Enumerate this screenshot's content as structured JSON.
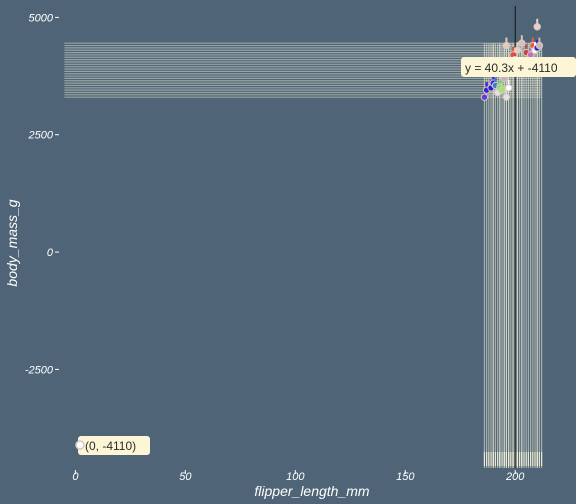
{
  "chart_data": {
    "type": "scatter",
    "title": "",
    "xlabel": "flipper_length_mm",
    "ylabel": "body_mass_g",
    "xlim": [
      -7,
      224
    ],
    "ylim": [
      -4600,
      5200
    ],
    "x_ticks": [
      {
        "value": 0,
        "label": "0"
      },
      {
        "value": 50,
        "label": "50"
      },
      {
        "value": 100,
        "label": "100"
      },
      {
        "value": 150,
        "label": "150"
      },
      {
        "value": 200,
        "label": "200"
      }
    ],
    "y_ticks": [
      {
        "value": 5000,
        "label": "5000"
      },
      {
        "value": 2500,
        "label": "2500"
      },
      {
        "value": 0,
        "label": "0"
      },
      {
        "value": -2500,
        "label": "-2500"
      }
    ],
    "grid": false,
    "legend": "none",
    "colors": {
      "background": "#4f6577",
      "rug": "#f2efd6",
      "callout_bg": "#fdf6d6",
      "crosshair": "#111111",
      "point_outline": "#d9c9c3"
    },
    "points": [
      {
        "x": 186,
        "y": 3300,
        "color": "#5b3fd6"
      },
      {
        "x": 187,
        "y": 3450,
        "color": "#3a1fcf"
      },
      {
        "x": 189,
        "y": 3500,
        "color": "#2d1bd0"
      },
      {
        "x": 190,
        "y": 3600,
        "color": "#4422d8"
      },
      {
        "x": 191,
        "y": 3550,
        "color": "#3a7fd0"
      },
      {
        "x": 192,
        "y": 3400,
        "color": "#e8e0dc"
      },
      {
        "x": 193,
        "y": 3500,
        "color": "#7be27a"
      },
      {
        "x": 194,
        "y": 3450,
        "color": "#9be864"
      },
      {
        "x": 195,
        "y": 3700,
        "color": "#c8b0b0"
      },
      {
        "x": 196,
        "y": 3300,
        "color": "#e8e0dc"
      },
      {
        "x": 197,
        "y": 3500,
        "color": "#ffffff"
      },
      {
        "x": 196,
        "y": 3900,
        "color": "#c8b0b0"
      },
      {
        "x": 196,
        "y": 4400,
        "color": "#e8c8b8"
      },
      {
        "x": 199,
        "y": 4200,
        "color": "#e05040"
      },
      {
        "x": 200,
        "y": 4100,
        "color": "#d04040"
      },
      {
        "x": 201,
        "y": 4300,
        "color": "#e0d0c8"
      },
      {
        "x": 203,
        "y": 4450,
        "color": "#d8c0b8"
      },
      {
        "x": 205,
        "y": 4250,
        "color": "#c04848"
      },
      {
        "x": 207,
        "y": 4200,
        "color": "#c070c0"
      },
      {
        "x": 208,
        "y": 4400,
        "color": "#e06040"
      },
      {
        "x": 209,
        "y": 4300,
        "color": "#ffffff"
      },
      {
        "x": 210,
        "y": 4350,
        "color": "#3020d0"
      },
      {
        "x": 211,
        "y": 4400,
        "color": "#c8b8b0"
      },
      {
        "x": 210,
        "y": 4800,
        "color": "#e8d0c8"
      }
    ],
    "rug_x": [
      186,
      187,
      188,
      189,
      190,
      190,
      191,
      192,
      193,
      193,
      194,
      195,
      195,
      196,
      196,
      197,
      197,
      198,
      199,
      199,
      200,
      200,
      201,
      201,
      202,
      203,
      203,
      204,
      205,
      206,
      207,
      208,
      209,
      210,
      210,
      211,
      212
    ],
    "rug_y": [
      3300,
      3350,
      3400,
      3450,
      3500,
      3550,
      3600,
      3650,
      3700,
      3750,
      3800,
      3850,
      3900,
      3950,
      4000,
      4050,
      4100,
      4150,
      4200,
      4250,
      4300,
      4350,
      4400,
      4450
    ],
    "crosshair": {
      "x": 200
    },
    "regression": {
      "slope": 40.3,
      "intercept": -4110
    },
    "annotations": {
      "equation": "y = 40.3x + -4110",
      "intercept": "(0, -4110)"
    }
  }
}
